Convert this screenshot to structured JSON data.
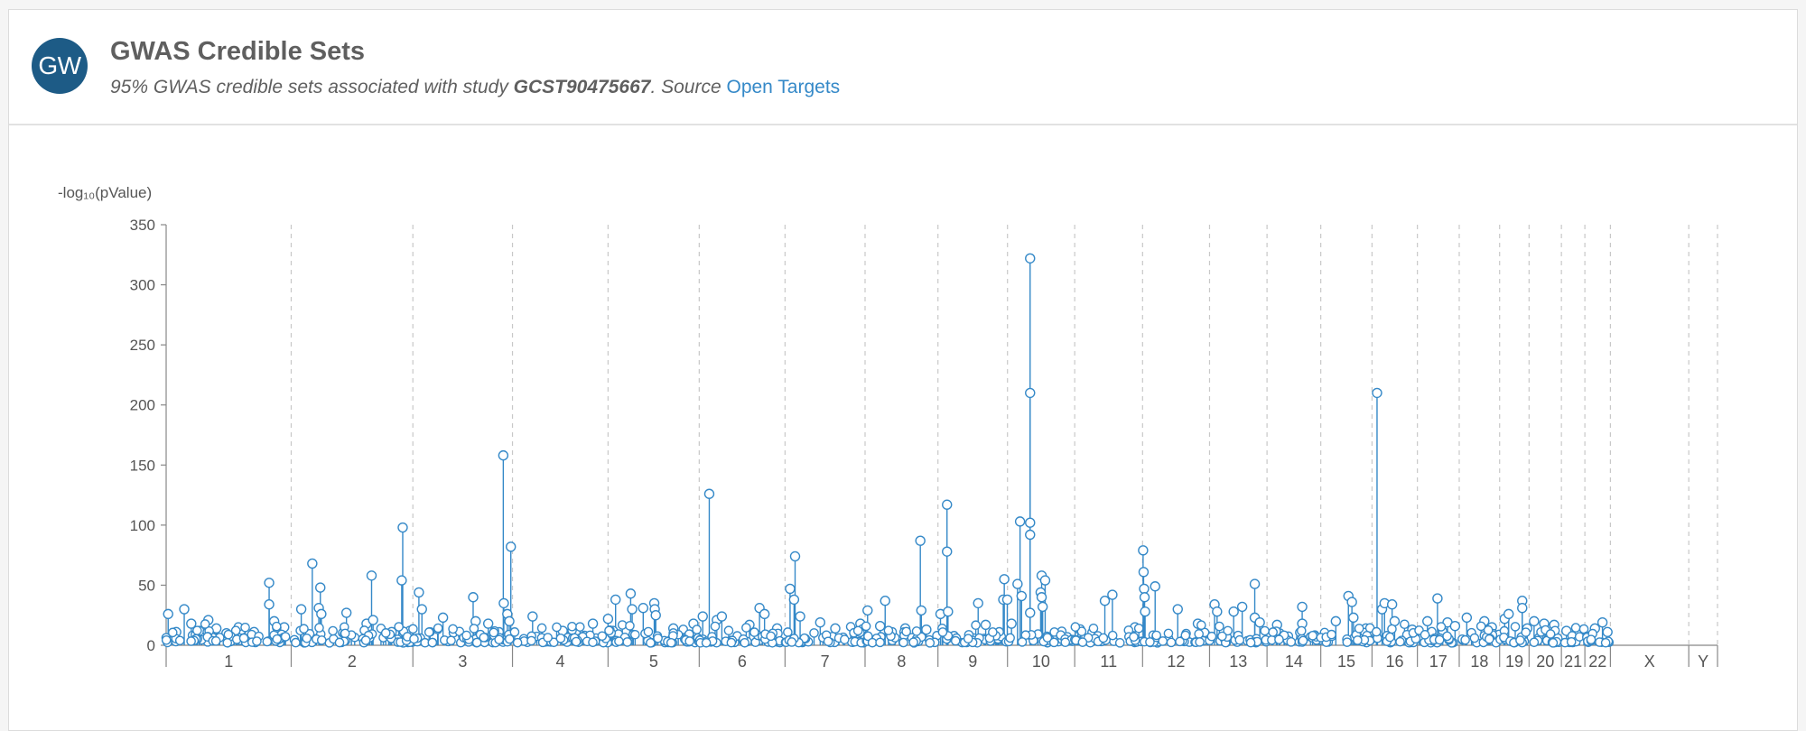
{
  "header": {
    "avatar_text": "GW",
    "title": "GWAS Credible Sets",
    "subtitle_prefix": "95% GWAS credible sets associated with study ",
    "study_id": "GCST90475667",
    "subtitle_mid": ". Source ",
    "source_link": "Open Targets"
  },
  "colors": {
    "accent": "#3589c8",
    "avatar": "#1d5b86"
  },
  "chart_data": {
    "type": "scatter",
    "title": "",
    "ylabel": "-log₁₀(pValue)",
    "ylim": [
      0,
      350
    ],
    "yticks": [
      0,
      50,
      100,
      150,
      200,
      250,
      300,
      350
    ],
    "grid": "vertical dashed chromosome boundaries",
    "chromosomes": [
      {
        "name": "1",
        "length": 248.9
      },
      {
        "name": "2",
        "length": 242.2
      },
      {
        "name": "3",
        "length": 198.3
      },
      {
        "name": "4",
        "length": 190.2
      },
      {
        "name": "5",
        "length": 181.5
      },
      {
        "name": "6",
        "length": 170.8
      },
      {
        "name": "7",
        "length": 159.3
      },
      {
        "name": "8",
        "length": 145.1
      },
      {
        "name": "9",
        "length": 138.4
      },
      {
        "name": "10",
        "length": 133.8
      },
      {
        "name": "11",
        "length": 135.1
      },
      {
        "name": "12",
        "length": 133.3
      },
      {
        "name": "13",
        "length": 114.4
      },
      {
        "name": "14",
        "length": 107.0
      },
      {
        "name": "15",
        "length": 102.0
      },
      {
        "name": "16",
        "length": 90.3
      },
      {
        "name": "17",
        "length": 83.3
      },
      {
        "name": "18",
        "length": 80.4
      },
      {
        "name": "19",
        "length": 58.6
      },
      {
        "name": "20",
        "length": 64.4
      },
      {
        "name": "21",
        "length": 46.7
      },
      {
        "name": "22",
        "length": 50.8
      },
      {
        "name": "X",
        "length": 156.0
      },
      {
        "name": "Y",
        "length": 57.2
      }
    ],
    "series": [
      {
        "points": [
          {
            "chr": "1",
            "pos": 4,
            "y": 26
          },
          {
            "chr": "1",
            "pos": 20,
            "y": 11
          },
          {
            "chr": "1",
            "pos": 36,
            "y": 30
          },
          {
            "chr": "1",
            "pos": 50,
            "y": 18
          },
          {
            "chr": "1",
            "pos": 66,
            "y": 12
          },
          {
            "chr": "1",
            "pos": 84,
            "y": 21
          },
          {
            "chr": "1",
            "pos": 100,
            "y": 14
          },
          {
            "chr": "1",
            "pos": 120,
            "y": 10
          },
          {
            "chr": "1",
            "pos": 150,
            "y": 13
          },
          {
            "chr": "1",
            "pos": 175,
            "y": 11
          },
          {
            "chr": "1",
            "pos": 205,
            "y": 52
          },
          {
            "chr": "1",
            "pos": 205,
            "y": 34
          },
          {
            "chr": "1",
            "pos": 215,
            "y": 20
          },
          {
            "chr": "1",
            "pos": 235,
            "y": 15
          },
          {
            "chr": "2",
            "pos": 20,
            "y": 30
          },
          {
            "chr": "2",
            "pos": 42,
            "y": 68
          },
          {
            "chr": "2",
            "pos": 58,
            "y": 48
          },
          {
            "chr": "2",
            "pos": 55,
            "y": 31
          },
          {
            "chr": "2",
            "pos": 60,
            "y": 26
          },
          {
            "chr": "2",
            "pos": 110,
            "y": 27
          },
          {
            "chr": "2",
            "pos": 150,
            "y": 18
          },
          {
            "chr": "2",
            "pos": 160,
            "y": 58
          },
          {
            "chr": "2",
            "pos": 163,
            "y": 21
          },
          {
            "chr": "2",
            "pos": 200,
            "y": 11
          },
          {
            "chr": "2",
            "pos": 222,
            "y": 98
          },
          {
            "chr": "2",
            "pos": 220,
            "y": 54
          },
          {
            "chr": "2",
            "pos": 236,
            "y": 12
          },
          {
            "chr": "3",
            "pos": 12,
            "y": 44
          },
          {
            "chr": "3",
            "pos": 18,
            "y": 30
          },
          {
            "chr": "3",
            "pos": 60,
            "y": 23
          },
          {
            "chr": "3",
            "pos": 120,
            "y": 40
          },
          {
            "chr": "3",
            "pos": 125,
            "y": 20
          },
          {
            "chr": "3",
            "pos": 150,
            "y": 18
          },
          {
            "chr": "3",
            "pos": 180,
            "y": 158
          },
          {
            "chr": "3",
            "pos": 181,
            "y": 35
          },
          {
            "chr": "3",
            "pos": 188,
            "y": 26
          },
          {
            "chr": "3",
            "pos": 195,
            "y": 82
          },
          {
            "chr": "3",
            "pos": 192,
            "y": 20
          },
          {
            "chr": "4",
            "pos": 40,
            "y": 24
          },
          {
            "chr": "4",
            "pos": 100,
            "y": 12
          },
          {
            "chr": "4",
            "pos": 160,
            "y": 18
          },
          {
            "chr": "5",
            "pos": 0,
            "y": 22
          },
          {
            "chr": "5",
            "pos": 10,
            "y": 12
          },
          {
            "chr": "5",
            "pos": 15,
            "y": 38
          },
          {
            "chr": "5",
            "pos": 45,
            "y": 43
          },
          {
            "chr": "5",
            "pos": 48,
            "y": 30
          },
          {
            "chr": "5",
            "pos": 70,
            "y": 31
          },
          {
            "chr": "5",
            "pos": 92,
            "y": 35
          },
          {
            "chr": "5",
            "pos": 93,
            "y": 30
          },
          {
            "chr": "5",
            "pos": 95,
            "y": 25
          },
          {
            "chr": "5",
            "pos": 130,
            "y": 14
          },
          {
            "chr": "5",
            "pos": 170,
            "y": 18
          },
          {
            "chr": "6",
            "pos": 7,
            "y": 24
          },
          {
            "chr": "6",
            "pos": 20,
            "y": 126
          },
          {
            "chr": "6",
            "pos": 35,
            "y": 21
          },
          {
            "chr": "6",
            "pos": 45,
            "y": 24
          },
          {
            "chr": "6",
            "pos": 100,
            "y": 17
          },
          {
            "chr": "6",
            "pos": 120,
            "y": 31
          },
          {
            "chr": "6",
            "pos": 130,
            "y": 26
          },
          {
            "chr": "6",
            "pos": 155,
            "y": 14
          },
          {
            "chr": "7",
            "pos": 10,
            "y": 47
          },
          {
            "chr": "7",
            "pos": 20,
            "y": 74
          },
          {
            "chr": "7",
            "pos": 18,
            "y": 38
          },
          {
            "chr": "7",
            "pos": 30,
            "y": 24
          },
          {
            "chr": "7",
            "pos": 70,
            "y": 19
          },
          {
            "chr": "7",
            "pos": 100,
            "y": 14
          },
          {
            "chr": "7",
            "pos": 150,
            "y": 18
          },
          {
            "chr": "8",
            "pos": 5,
            "y": 29
          },
          {
            "chr": "8",
            "pos": 30,
            "y": 16
          },
          {
            "chr": "8",
            "pos": 40,
            "y": 37
          },
          {
            "chr": "8",
            "pos": 80,
            "y": 14
          },
          {
            "chr": "8",
            "pos": 110,
            "y": 87
          },
          {
            "chr": "8",
            "pos": 112,
            "y": 29
          },
          {
            "chr": "8",
            "pos": 122,
            "y": 13
          },
          {
            "chr": "9",
            "pos": 5,
            "y": 26
          },
          {
            "chr": "9",
            "pos": 18,
            "y": 117
          },
          {
            "chr": "9",
            "pos": 18,
            "y": 78
          },
          {
            "chr": "9",
            "pos": 20,
            "y": 28
          },
          {
            "chr": "9",
            "pos": 80,
            "y": 35
          },
          {
            "chr": "9",
            "pos": 95,
            "y": 17
          },
          {
            "chr": "9",
            "pos": 132,
            "y": 55
          },
          {
            "chr": "9",
            "pos": 130,
            "y": 38
          },
          {
            "chr": "9",
            "pos": 138,
            "y": 38
          },
          {
            "chr": "10",
            "pos": 8,
            "y": 18
          },
          {
            "chr": "10",
            "pos": 20,
            "y": 51
          },
          {
            "chr": "10",
            "pos": 25,
            "y": 103
          },
          {
            "chr": "10",
            "pos": 28,
            "y": 41
          },
          {
            "chr": "10",
            "pos": 45,
            "y": 322
          },
          {
            "chr": "10",
            "pos": 45,
            "y": 210
          },
          {
            "chr": "10",
            "pos": 45,
            "y": 102
          },
          {
            "chr": "10",
            "pos": 45,
            "y": 92
          },
          {
            "chr": "10",
            "pos": 45,
            "y": 27
          },
          {
            "chr": "10",
            "pos": 68,
            "y": 58
          },
          {
            "chr": "10",
            "pos": 66,
            "y": 44
          },
          {
            "chr": "10",
            "pos": 68,
            "y": 40
          },
          {
            "chr": "10",
            "pos": 75,
            "y": 54
          },
          {
            "chr": "10",
            "pos": 70,
            "y": 32
          },
          {
            "chr": "11",
            "pos": 60,
            "y": 37
          },
          {
            "chr": "11",
            "pos": 75,
            "y": 42
          },
          {
            "chr": "11",
            "pos": 120,
            "y": 15
          },
          {
            "chr": "12",
            "pos": 1,
            "y": 79
          },
          {
            "chr": "12",
            "pos": 2,
            "y": 61
          },
          {
            "chr": "12",
            "pos": 3,
            "y": 47
          },
          {
            "chr": "12",
            "pos": 4,
            "y": 40
          },
          {
            "chr": "12",
            "pos": 5,
            "y": 28
          },
          {
            "chr": "12",
            "pos": 25,
            "y": 49
          },
          {
            "chr": "12",
            "pos": 70,
            "y": 30
          },
          {
            "chr": "12",
            "pos": 110,
            "y": 18
          },
          {
            "chr": "13",
            "pos": 10,
            "y": 34
          },
          {
            "chr": "13",
            "pos": 15,
            "y": 28
          },
          {
            "chr": "13",
            "pos": 48,
            "y": 28
          },
          {
            "chr": "13",
            "pos": 65,
            "y": 32
          },
          {
            "chr": "13",
            "pos": 90,
            "y": 51
          },
          {
            "chr": "13",
            "pos": 90,
            "y": 23
          },
          {
            "chr": "13",
            "pos": 100,
            "y": 19
          },
          {
            "chr": "14",
            "pos": 20,
            "y": 17
          },
          {
            "chr": "14",
            "pos": 70,
            "y": 32
          },
          {
            "chr": "14",
            "pos": 70,
            "y": 18
          },
          {
            "chr": "15",
            "pos": 30,
            "y": 20
          },
          {
            "chr": "15",
            "pos": 55,
            "y": 41
          },
          {
            "chr": "15",
            "pos": 62,
            "y": 36
          },
          {
            "chr": "15",
            "pos": 65,
            "y": 23
          },
          {
            "chr": "15",
            "pos": 90,
            "y": 14
          },
          {
            "chr": "16",
            "pos": 10,
            "y": 210
          },
          {
            "chr": "16",
            "pos": 20,
            "y": 30
          },
          {
            "chr": "16",
            "pos": 25,
            "y": 35
          },
          {
            "chr": "16",
            "pos": 40,
            "y": 34
          },
          {
            "chr": "16",
            "pos": 45,
            "y": 20
          },
          {
            "chr": "16",
            "pos": 80,
            "y": 13
          },
          {
            "chr": "17",
            "pos": 20,
            "y": 20
          },
          {
            "chr": "17",
            "pos": 40,
            "y": 39
          },
          {
            "chr": "17",
            "pos": 60,
            "y": 19
          },
          {
            "chr": "17",
            "pos": 75,
            "y": 16
          },
          {
            "chr": "18",
            "pos": 15,
            "y": 23
          },
          {
            "chr": "18",
            "pos": 50,
            "y": 20
          },
          {
            "chr": "18",
            "pos": 65,
            "y": 15
          },
          {
            "chr": "19",
            "pos": 10,
            "y": 22
          },
          {
            "chr": "19",
            "pos": 18,
            "y": 26
          },
          {
            "chr": "19",
            "pos": 45,
            "y": 37
          },
          {
            "chr": "19",
            "pos": 45,
            "y": 31
          },
          {
            "chr": "19",
            "pos": 55,
            "y": 14
          },
          {
            "chr": "20",
            "pos": 10,
            "y": 20
          },
          {
            "chr": "20",
            "pos": 30,
            "y": 18
          },
          {
            "chr": "20",
            "pos": 50,
            "y": 17
          },
          {
            "chr": "21",
            "pos": 10,
            "y": 12
          },
          {
            "chr": "21",
            "pos": 30,
            "y": 10
          },
          {
            "chr": "22",
            "pos": 20,
            "y": 14
          },
          {
            "chr": "22",
            "pos": 35,
            "y": 19
          },
          {
            "chr": "22",
            "pos": 45,
            "y": 11
          }
        ]
      }
    ]
  }
}
